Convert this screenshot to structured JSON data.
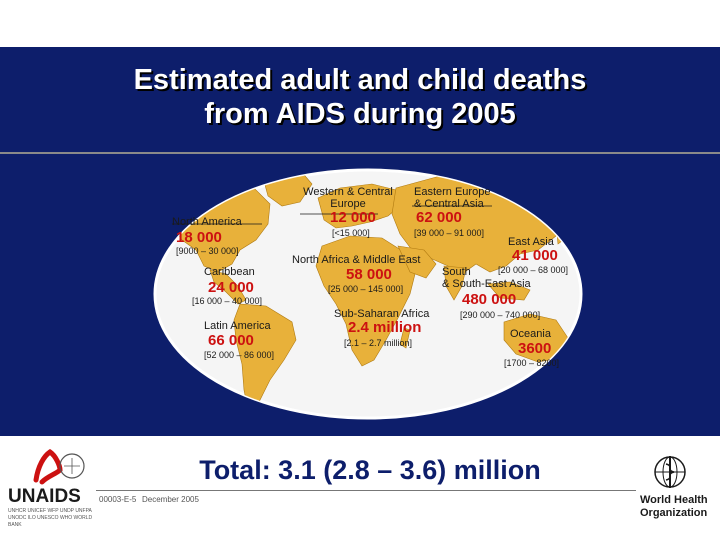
{
  "title": {
    "line1": "Estimated adult and child deaths",
    "line2": "from AIDS during 2005"
  },
  "regions": {
    "north_america": {
      "label": "North America",
      "value": "18 000",
      "range": "[9000 –  30 000]"
    },
    "caribbean": {
      "label": "Caribbean",
      "value": "24 000",
      "range": "[16 000 –  40 000]"
    },
    "latin_america": {
      "label": "Latin America",
      "value": "66 000",
      "range": "[52 000 –  86 000]"
    },
    "western_central_europe": {
      "label1": "Western & Central",
      "label2": "Europe",
      "value": "12 000",
      "range": "[<15 000]"
    },
    "north_africa_middle_east": {
      "label": "North Africa & Middle East",
      "value": "58 000",
      "range": "[25 000 –  145 000]"
    },
    "sub_saharan_africa": {
      "label": "Sub-Saharan Africa",
      "value": "2.4 million",
      "range": "[2.1 –  2.7 million]"
    },
    "eastern_europe_central_asia": {
      "label1": "Eastern Europe",
      "label2": "& Central Asia",
      "value": "62 000",
      "range": "[39 000 –  91 000]"
    },
    "east_asia": {
      "label": "East Asia",
      "value": "41 000",
      "range": "[20 000 –  68 000]"
    },
    "south_southeast_asia": {
      "label1": "South",
      "label2": "& South-East Asia",
      "value": "480 000",
      "range": "[290 000 –  740 000]"
    },
    "oceania": {
      "label": "Oceania",
      "value": "3600",
      "range": "[1700 –  8200]"
    }
  },
  "total": "Total: 3.1 (2.8 – 3.6) million",
  "footer": {
    "code": "00003-E-5",
    "date": "December 2005",
    "unaids_logo_text": "UNAIDS",
    "unaids_partners": "UNHCR UNICEF WFP UNDP UNFPA UNODC ILO UNESCO WHO WORLD BANK",
    "who_name_line1": "World Health",
    "who_name_line2": "Organization"
  },
  "colors": {
    "header_bg": "#0d1e6b",
    "ocean": "#f5f5f5",
    "land": "#e8b13a",
    "value_red": "#cc1111",
    "title_text": "#ffffff"
  }
}
